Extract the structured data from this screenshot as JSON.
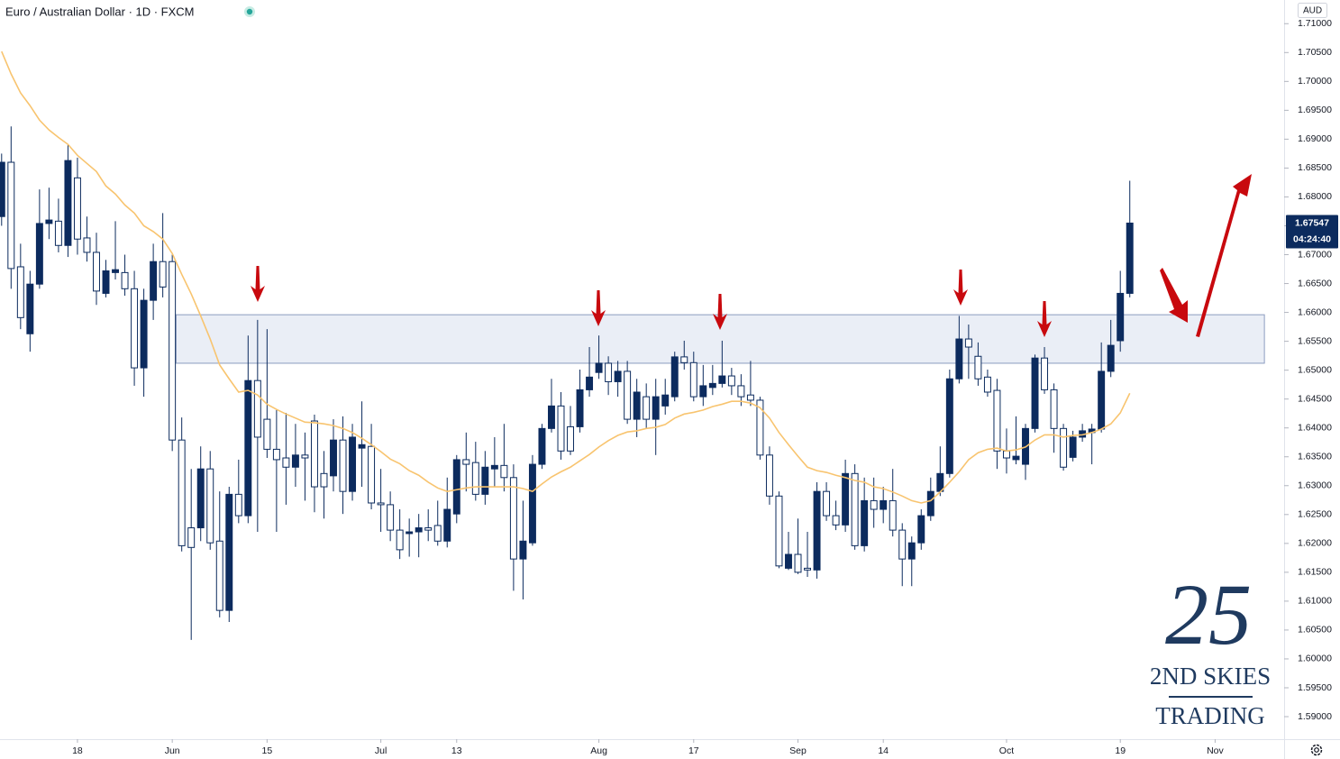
{
  "chart_data": {
    "type": "candlestick",
    "title": "Euro / Australian Dollar · 1D · FXCM",
    "currency": "AUD",
    "last_price": 1.67547,
    "countdown": "04:24:40",
    "x": [
      0,
      1,
      2,
      3,
      4,
      5,
      6,
      7,
      8,
      9,
      10,
      11,
      12,
      13,
      14,
      15,
      16,
      17,
      18,
      19,
      20,
      21,
      22,
      23,
      24,
      25,
      26,
      27,
      28,
      29,
      30,
      31,
      32,
      33,
      34,
      35,
      36,
      37,
      38,
      39,
      40,
      41,
      42,
      43,
      44,
      45,
      46,
      47,
      48,
      49,
      50,
      51,
      52,
      53,
      54,
      55,
      56,
      57,
      58,
      59,
      60,
      61,
      62,
      63,
      64,
      65,
      66,
      67,
      68,
      69,
      70,
      71,
      72,
      73,
      74,
      75,
      76,
      77,
      78,
      79,
      80,
      81,
      82,
      83,
      84,
      85,
      86,
      87,
      88,
      89,
      90,
      91,
      92,
      93,
      94,
      95,
      96,
      97,
      98,
      99,
      100,
      101,
      102,
      103,
      104,
      105,
      106,
      107,
      108,
      109,
      110,
      111,
      112,
      113,
      114,
      115,
      116,
      117,
      118,
      119
    ],
    "xlim": [
      -0.17,
      135.28
    ],
    "xticks": [
      {
        "value": 8,
        "label": "18"
      },
      {
        "value": 18,
        "label": "Jun"
      },
      {
        "value": 28,
        "label": "15"
      },
      {
        "value": 40,
        "label": "Jul"
      },
      {
        "value": 48,
        "label": "13"
      },
      {
        "value": 63,
        "label": "Aug"
      },
      {
        "value": 73,
        "label": "17"
      },
      {
        "value": 84,
        "label": "Sep"
      },
      {
        "value": 93,
        "label": "14"
      },
      {
        "value": 106,
        "label": "Oct"
      },
      {
        "value": 118,
        "label": "19"
      },
      {
        "value": 128,
        "label": "Nov"
      }
    ],
    "ylim": [
      1.5861,
      1.7141
    ],
    "yticks": [
      {
        "value": 1.59,
        "label": "1.59000"
      },
      {
        "value": 1.595,
        "label": "1.59500"
      },
      {
        "value": 1.6,
        "label": "1.60000"
      },
      {
        "value": 1.605,
        "label": "1.60500"
      },
      {
        "value": 1.61,
        "label": "1.61000"
      },
      {
        "value": 1.615,
        "label": "1.61500"
      },
      {
        "value": 1.62,
        "label": "1.62000"
      },
      {
        "value": 1.625,
        "label": "1.62500"
      },
      {
        "value": 1.63,
        "label": "1.63000"
      },
      {
        "value": 1.635,
        "label": "1.63500"
      },
      {
        "value": 1.64,
        "label": "1.64000"
      },
      {
        "value": 1.645,
        "label": "1.64500"
      },
      {
        "value": 1.65,
        "label": "1.65000"
      },
      {
        "value": 1.655,
        "label": "1.65500"
      },
      {
        "value": 1.66,
        "label": "1.66000"
      },
      {
        "value": 1.665,
        "label": "1.66500"
      },
      {
        "value": 1.67,
        "label": "1.67000"
      },
      {
        "value": 1.675,
        "label": "1.67500"
      },
      {
        "value": 1.68,
        "label": "1.68000"
      },
      {
        "value": 1.685,
        "label": "1.68500"
      },
      {
        "value": 1.69,
        "label": "1.69000"
      },
      {
        "value": 1.695,
        "label": "1.69500"
      },
      {
        "value": 1.7,
        "label": "1.70000"
      },
      {
        "value": 1.705,
        "label": "1.70500"
      },
      {
        "value": 1.71,
        "label": "1.71000"
      }
    ],
    "grid": false,
    "candles": {
      "up_color": "#0c2b5e",
      "down_color": "#ffffff",
      "wick_color": "#0c2b5e",
      "open": [
        1.6766,
        1.686,
        1.6679,
        1.6563,
        1.6649,
        1.6754,
        1.6758,
        1.6716,
        1.6833,
        1.6729,
        1.6704,
        1.6633,
        1.6669,
        1.6669,
        1.6641,
        1.6504,
        1.6621,
        1.6688,
        1.6688,
        1.6379,
        1.6227,
        1.6227,
        1.6329,
        1.6204,
        1.6084,
        1.6285,
        1.6248,
        1.6482,
        1.6415,
        1.6363,
        1.6348,
        1.6332,
        1.6353,
        1.6412,
        1.6321,
        1.6317,
        1.6379,
        1.629,
        1.6365,
        1.6368,
        1.627,
        1.6267,
        1.6223,
        1.6217,
        1.622,
        1.6227,
        1.6231,
        1.6204,
        1.6251,
        1.6345,
        1.634,
        1.6285,
        1.6329,
        1.6335,
        1.6314,
        1.6173,
        1.6201,
        1.6337,
        1.6399,
        1.6438,
        1.6402,
        1.6402,
        1.6466,
        1.6496,
        1.6512,
        1.648,
        1.6498,
        1.6415,
        1.6454,
        1.6415,
        1.6438,
        1.6454,
        1.6523,
        1.6513,
        1.6454,
        1.647,
        1.6477,
        1.649,
        1.6473,
        1.6457,
        1.6448,
        1.6353,
        1.6282,
        1.6157,
        1.6181,
        1.6157,
        1.6154,
        1.629,
        1.6248,
        1.6232,
        1.6321,
        1.6196,
        1.6274,
        1.6259,
        1.6274,
        1.6223,
        1.6173,
        1.6201,
        1.6248,
        1.629,
        1.6321,
        1.6485,
        1.6554,
        1.6524,
        1.6488,
        1.6465,
        1.636,
        1.6345,
        1.6337,
        1.6399,
        1.6521,
        1.6466,
        1.6399,
        1.6349,
        1.6384,
        1.6392,
        1.6398,
        1.6498,
        1.6551,
        1.6633
      ],
      "high": [
        1.6875,
        1.6922,
        1.6719,
        1.6672,
        1.6813,
        1.6816,
        1.6797,
        1.6891,
        1.6868,
        1.6766,
        1.6738,
        1.6691,
        1.6758,
        1.67,
        1.6672,
        1.6641,
        1.6719,
        1.6772,
        1.67,
        1.6418,
        1.6329,
        1.6368,
        1.636,
        1.629,
        1.6298,
        1.6345,
        1.656,
        1.6587,
        1.6571,
        1.6431,
        1.6426,
        1.6407,
        1.6392,
        1.6423,
        1.636,
        1.6415,
        1.642,
        1.6407,
        1.6446,
        1.6407,
        1.6329,
        1.629,
        1.6259,
        1.6243,
        1.6251,
        1.6259,
        1.6274,
        1.6314,
        1.6353,
        1.6392,
        1.6376,
        1.636,
        1.6384,
        1.6407,
        1.6337,
        1.6274,
        1.6353,
        1.6407,
        1.6485,
        1.6462,
        1.6438,
        1.6501,
        1.654,
        1.656,
        1.6524,
        1.6516,
        1.6516,
        1.6485,
        1.6477,
        1.6485,
        1.6485,
        1.6532,
        1.6551,
        1.6532,
        1.6509,
        1.6509,
        1.6551,
        1.6504,
        1.6493,
        1.6516,
        1.6454,
        1.6368,
        1.629,
        1.622,
        1.6243,
        1.622,
        1.6306,
        1.6306,
        1.6274,
        1.6345,
        1.6337,
        1.6314,
        1.6314,
        1.6298,
        1.6329,
        1.6235,
        1.6212,
        1.6259,
        1.6314,
        1.6368,
        1.6501,
        1.6594,
        1.6579,
        1.6548,
        1.6501,
        1.6485,
        1.6399,
        1.642,
        1.6407,
        1.6527,
        1.654,
        1.6477,
        1.6407,
        1.6395,
        1.6407,
        1.6407,
        1.6548,
        1.6587,
        1.6672,
        1.6828
      ],
      "low": [
        1.675,
        1.6641,
        1.6571,
        1.6532,
        1.6641,
        1.6727,
        1.6704,
        1.6696,
        1.67,
        1.6688,
        1.6613,
        1.6626,
        1.6657,
        1.6629,
        1.6473,
        1.6454,
        1.6587,
        1.6626,
        1.636,
        1.6186,
        1.6033,
        1.6204,
        1.6189,
        1.6072,
        1.6064,
        1.6235,
        1.6235,
        1.622,
        1.6348,
        1.622,
        1.6267,
        1.6298,
        1.6274,
        1.6254,
        1.6243,
        1.629,
        1.6251,
        1.6274,
        1.6298,
        1.6259,
        1.622,
        1.6204,
        1.6173,
        1.6177,
        1.6176,
        1.6204,
        1.6196,
        1.6193,
        1.6235,
        1.629,
        1.6274,
        1.6267,
        1.6298,
        1.629,
        1.6118,
        1.6103,
        1.6196,
        1.6329,
        1.6392,
        1.6345,
        1.6353,
        1.6392,
        1.6454,
        1.6485,
        1.6457,
        1.6454,
        1.6407,
        1.6384,
        1.6399,
        1.6353,
        1.6423,
        1.6446,
        1.6501,
        1.6446,
        1.6438,
        1.6457,
        1.647,
        1.6457,
        1.6438,
        1.6438,
        1.6345,
        1.6267,
        1.6157,
        1.6154,
        1.6147,
        1.6142,
        1.6139,
        1.6239,
        1.6223,
        1.622,
        1.6189,
        1.6186,
        1.6227,
        1.6235,
        1.6212,
        1.6126,
        1.6126,
        1.6189,
        1.6239,
        1.6282,
        1.6314,
        1.6477,
        1.6485,
        1.6473,
        1.6454,
        1.6329,
        1.6321,
        1.6337,
        1.631,
        1.6392,
        1.6459,
        1.6357,
        1.6326,
        1.6342,
        1.6376,
        1.6337,
        1.6392,
        1.6488,
        1.6532,
        1.6626
      ],
      "close": [
        1.686,
        1.6676,
        1.6591,
        1.6649,
        1.6754,
        1.676,
        1.6716,
        1.6863,
        1.6727,
        1.6704,
        1.6637,
        1.6672,
        1.6674,
        1.6641,
        1.6504,
        1.6621,
        1.6688,
        1.6644,
        1.6379,
        1.6196,
        1.6193,
        1.6329,
        1.6201,
        1.6084,
        1.6285,
        1.6248,
        1.6482,
        1.6384,
        1.6363,
        1.6345,
        1.6332,
        1.6353,
        1.6348,
        1.6298,
        1.6298,
        1.6379,
        1.629,
        1.6384,
        1.6371,
        1.627,
        1.6267,
        1.6223,
        1.6189,
        1.622,
        1.6227,
        1.6223,
        1.6204,
        1.6259,
        1.6345,
        1.6337,
        1.6285,
        1.6332,
        1.6335,
        1.6314,
        1.6173,
        1.6204,
        1.6337,
        1.6399,
        1.6438,
        1.636,
        1.636,
        1.6466,
        1.6488,
        1.6512,
        1.648,
        1.6498,
        1.6415,
        1.6462,
        1.6415,
        1.6454,
        1.6457,
        1.6523,
        1.6513,
        1.6454,
        1.6473,
        1.6477,
        1.649,
        1.6473,
        1.6454,
        1.6448,
        1.6353,
        1.6282,
        1.6161,
        1.6181,
        1.615,
        1.6154,
        1.629,
        1.6248,
        1.6232,
        1.6321,
        1.6196,
        1.6274,
        1.6259,
        1.6274,
        1.6223,
        1.6173,
        1.6201,
        1.6248,
        1.629,
        1.6321,
        1.6485,
        1.6554,
        1.654,
        1.6485,
        1.6462,
        1.636,
        1.6348,
        1.6351,
        1.6399,
        1.6521,
        1.6466,
        1.6399,
        1.6332,
        1.6384,
        1.6395,
        1.6398,
        1.6498,
        1.6543,
        1.6633,
        1.67547
      ]
    },
    "ma": {
      "color": "#f8c46f",
      "values": [
        1.7052,
        1.7013,
        1.698,
        1.6958,
        1.6933,
        1.6916,
        1.6903,
        1.6891,
        1.6872,
        1.6858,
        1.6844,
        1.6819,
        1.6805,
        1.6786,
        1.6772,
        1.675,
        1.674,
        1.6727,
        1.6702,
        1.6666,
        1.6632,
        1.6594,
        1.6554,
        1.6509,
        1.6485,
        1.6462,
        1.6465,
        1.6457,
        1.6441,
        1.6432,
        1.6424,
        1.6417,
        1.641,
        1.6409,
        1.6407,
        1.6404,
        1.6399,
        1.6392,
        1.6382,
        1.6371,
        1.6359,
        1.6346,
        1.6338,
        1.6326,
        1.6318,
        1.6306,
        1.6296,
        1.629,
        1.6293,
        1.6296,
        1.6298,
        1.6298,
        1.6298,
        1.6298,
        1.6298,
        1.6295,
        1.629,
        1.6303,
        1.6315,
        1.6324,
        1.6332,
        1.6343,
        1.6354,
        1.6367,
        1.6378,
        1.6387,
        1.6393,
        1.6395,
        1.6399,
        1.6401,
        1.6406,
        1.6417,
        1.6424,
        1.6427,
        1.6431,
        1.6437,
        1.6441,
        1.6446,
        1.6446,
        1.6443,
        1.6435,
        1.6417,
        1.6392,
        1.6371,
        1.6351,
        1.6332,
        1.6326,
        1.6323,
        1.6318,
        1.6314,
        1.6309,
        1.6306,
        1.6298,
        1.6295,
        1.6289,
        1.6282,
        1.6274,
        1.627,
        1.6274,
        1.6289,
        1.6306,
        1.6324,
        1.6345,
        1.6357,
        1.6363,
        1.6365,
        1.636,
        1.6362,
        1.6367,
        1.6379,
        1.6388,
        1.6388,
        1.6384,
        1.6387,
        1.6388,
        1.6392,
        1.6398,
        1.6407,
        1.6426,
        1.646
      ]
    },
    "zone": {
      "low": 1.6512,
      "high": 1.6596,
      "from": 18.4,
      "to": 133.2
    },
    "logo": {
      "mark": "25",
      "line1": "2ND SKIES",
      "line2": "TRADING"
    }
  }
}
